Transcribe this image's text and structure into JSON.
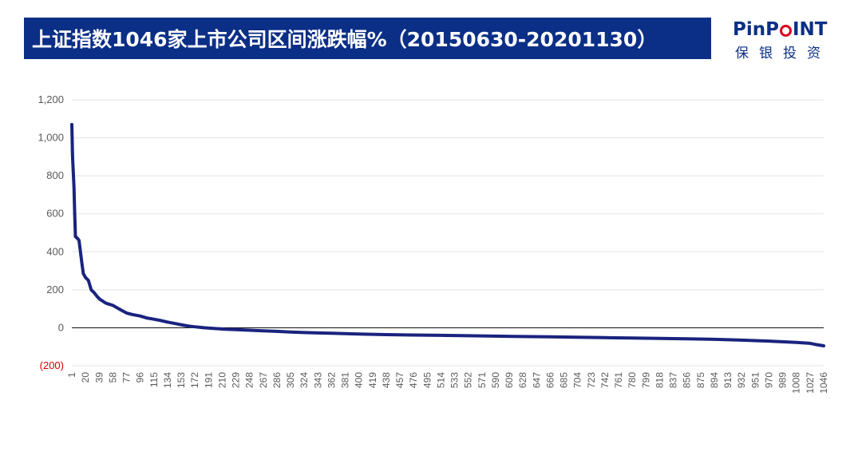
{
  "header": {
    "title": "上证指数1046家上市公司区间涨跌幅%（20150630-20201130）",
    "logo_top_left": "PinP",
    "logo_top_right": "INT",
    "logo_subtitle": "保银投资",
    "logo_icon": "red-ring-o-icon"
  },
  "colors": {
    "title_bg": "#0b2f87",
    "line": "#1a237e",
    "negative_label": "#d40000",
    "logo_accent": "#d6001c"
  },
  "chart_data": {
    "type": "line",
    "title": "",
    "xlabel": "",
    "ylabel": "",
    "ylim": [
      -200,
      1200
    ],
    "yticks": [
      {
        "value": 1200,
        "label": "1,200"
      },
      {
        "value": 1000,
        "label": "1,000"
      },
      {
        "value": 800,
        "label": "800"
      },
      {
        "value": 600,
        "label": "600"
      },
      {
        "value": 400,
        "label": "400"
      },
      {
        "value": 200,
        "label": "200"
      },
      {
        "value": 0,
        "label": "0"
      },
      {
        "value": -200,
        "label": "(200)"
      }
    ],
    "xlim": [
      1,
      1046
    ],
    "xticks": [
      "1",
      "20",
      "39",
      "58",
      "77",
      "96",
      "115",
      "134",
      "153",
      "172",
      "191",
      "210",
      "229",
      "248",
      "267",
      "286",
      "305",
      "324",
      "343",
      "362",
      "381",
      "400",
      "419",
      "438",
      "457",
      "476",
      "495",
      "514",
      "533",
      "552",
      "571",
      "590",
      "609",
      "628",
      "647",
      "666",
      "685",
      "704",
      "723",
      "742",
      "761",
      "780",
      "799",
      "818",
      "837",
      "856",
      "875",
      "894",
      "913",
      "932",
      "951",
      "970",
      "989",
      "1008",
      "1027",
      "1046"
    ],
    "grid": true,
    "legend": "none",
    "series": [
      {
        "name": "",
        "x": [
          1,
          2,
          4,
          5,
          6,
          9,
          11,
          13,
          15,
          17,
          20,
          24,
          28,
          32,
          36,
          40,
          44,
          48,
          52,
          58,
          64,
          70,
          77,
          85,
          96,
          105,
          115,
          125,
          134,
          145,
          153,
          162,
          172,
          185,
          200,
          215,
          229,
          248,
          267,
          286,
          305,
          324,
          343,
          362,
          381,
          400,
          438,
          476,
          514,
          552,
          590,
          628,
          666,
          704,
          742,
          780,
          818,
          856,
          894,
          932,
          970,
          1008,
          1027,
          1035,
          1046
        ],
        "y": [
          1070,
          900,
          740,
          600,
          480,
          470,
          460,
          400,
          340,
          285,
          265,
          250,
          200,
          185,
          165,
          150,
          140,
          130,
          125,
          118,
          105,
          92,
          78,
          70,
          62,
          52,
          45,
          38,
          30,
          22,
          16,
          10,
          5,
          0,
          -4,
          -8,
          -10,
          -13,
          -16,
          -19,
          -22,
          -25,
          -27,
          -29,
          -31,
          -33,
          -36,
          -38,
          -40,
          -42,
          -44,
          -46,
          -48,
          -50,
          -52,
          -54,
          -56,
          -58,
          -61,
          -65,
          -70,
          -77,
          -82,
          -88,
          -95
        ]
      }
    ]
  }
}
